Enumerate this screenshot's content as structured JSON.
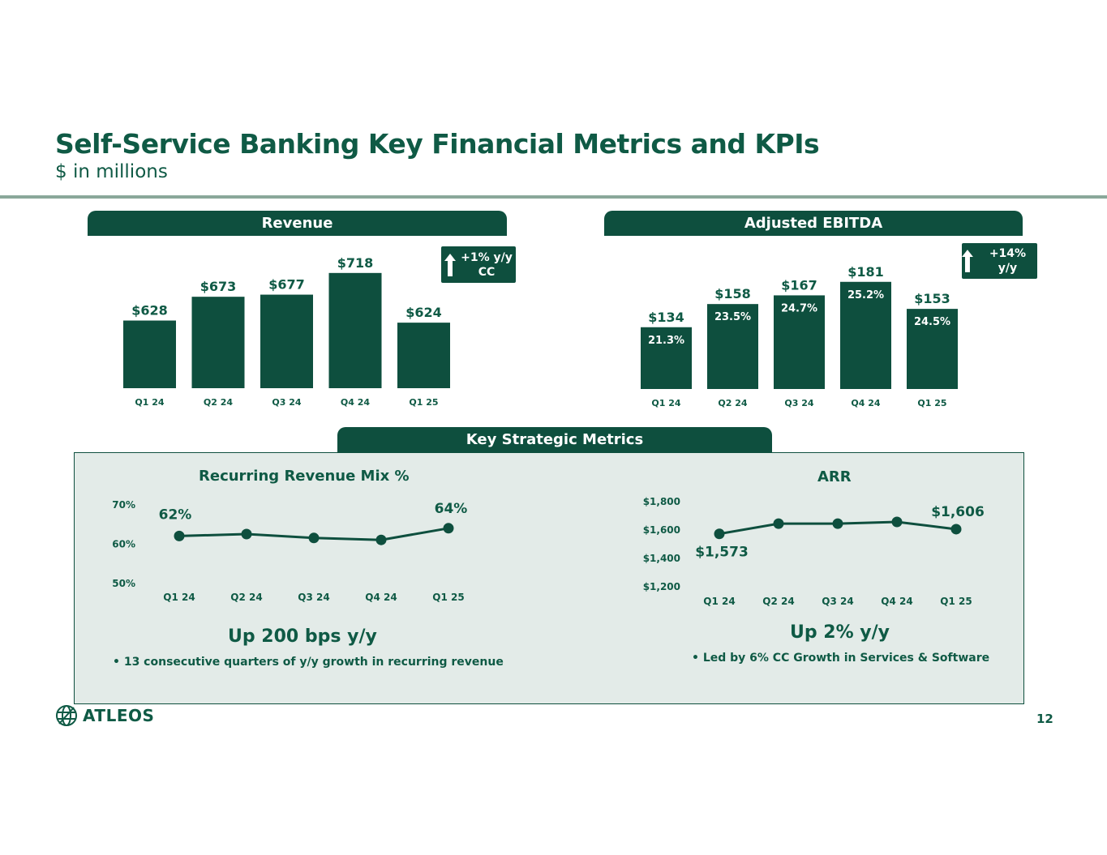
{
  "page": {
    "title": "Self-Service Banking Key Financial Metrics and KPIs",
    "subtitle": "$ in millions",
    "page_number": "12",
    "logo_text": "ATLEOS",
    "colors": {
      "primary": "#0e4f3e",
      "text": "#0f5a45",
      "panel": "#e3ebe8",
      "rule": "#8aa89a"
    }
  },
  "revenue": {
    "tab_label": "Revenue",
    "badge_line1": "+1% y/y",
    "badge_line2": "CC"
  },
  "ebitda": {
    "tab_label": "Adjusted EBITDA",
    "badge_line1": "+14% y/y"
  },
  "strategic": {
    "tab_label": "Key Strategic Metrics",
    "rr_title": "Recurring Revenue Mix %",
    "rr_headline": "Up 200 bps y/y",
    "rr_bullet": "13 consecutive quarters of y/y growth in recurring revenue",
    "arr_title": "ARR",
    "arr_headline": "Up 2% y/y",
    "arr_bullet": "Led by 6% CC Growth in Services & Software"
  },
  "chart_data": [
    {
      "id": "revenue",
      "type": "bar",
      "title": "Revenue",
      "categories": [
        "Q1 24",
        "Q2 24",
        "Q3 24",
        "Q4 24",
        "Q1 25"
      ],
      "values": [
        628,
        673,
        677,
        718,
        624
      ],
      "labels": [
        "$628",
        "$673",
        "$677",
        "$718",
        "$624"
      ],
      "ylim": [
        500,
        730
      ]
    },
    {
      "id": "ebitda",
      "type": "bar",
      "title": "Adjusted EBITDA",
      "categories": [
        "Q1 24",
        "Q2 24",
        "Q3 24",
        "Q4 24",
        "Q1 25"
      ],
      "values": [
        134,
        158,
        167,
        181,
        153
      ],
      "labels": [
        "$134",
        "$158",
        "$167",
        "$181",
        "$153"
      ],
      "margins": [
        "21.3%",
        "23.5%",
        "24.7%",
        "25.2%",
        "24.5%"
      ],
      "ylim": [
        70,
        185
      ]
    },
    {
      "id": "recurring",
      "type": "line",
      "title": "Recurring Revenue Mix %",
      "categories": [
        "Q1 24",
        "Q2 24",
        "Q3 24",
        "Q4 24",
        "Q1 25"
      ],
      "values": [
        62,
        62.5,
        61.5,
        61,
        64
      ],
      "point_labels": [
        "62%",
        "",
        "",
        "",
        "64%"
      ],
      "yticks": [
        "70%",
        "60%",
        "50%"
      ],
      "ylim": [
        50,
        70
      ]
    },
    {
      "id": "arr",
      "type": "line",
      "title": "ARR",
      "categories": [
        "Q1 24",
        "Q2 24",
        "Q3 24",
        "Q4 24",
        "Q1 25"
      ],
      "values": [
        1573,
        1645,
        1645,
        1657,
        1606
      ],
      "point_labels": [
        "$1,573",
        "",
        "",
        "",
        "$1,606"
      ],
      "yticks": [
        "$1,800",
        "$1,600",
        "$1,400",
        "$1,200"
      ],
      "ylim": [
        1200,
        1800
      ]
    }
  ]
}
